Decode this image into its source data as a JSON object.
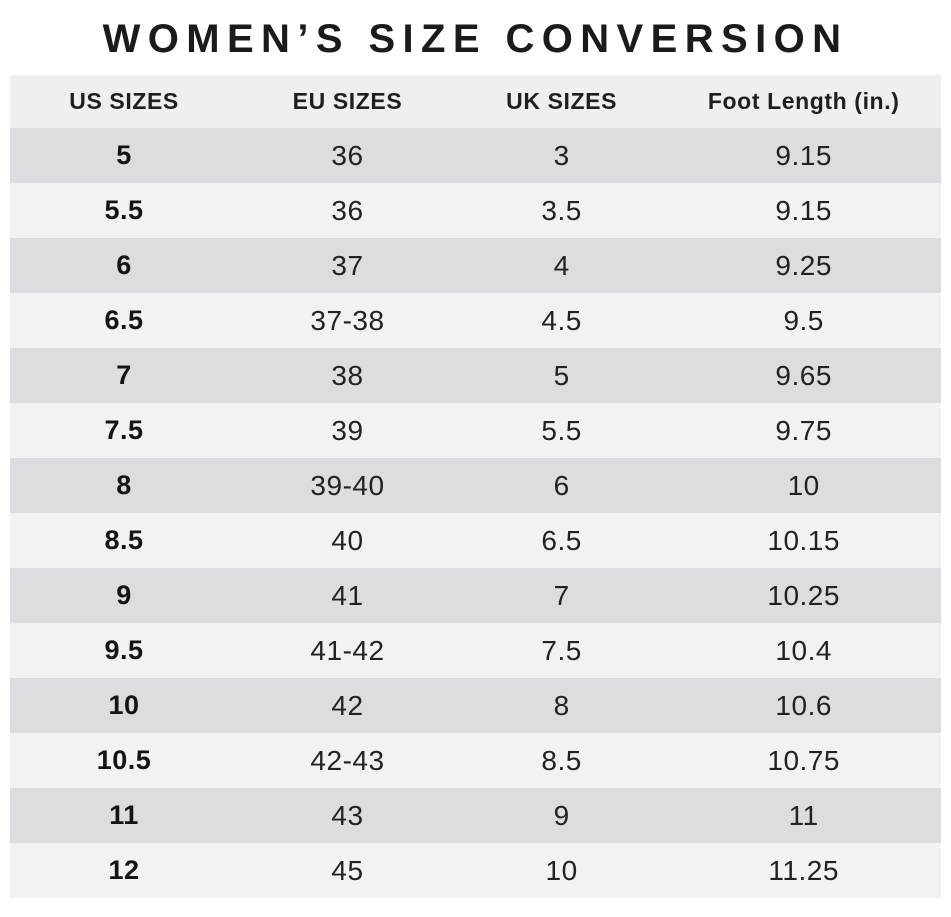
{
  "chart_data": {
    "type": "table",
    "title": "WOMEN’S SIZE CONVERSION",
    "columns": [
      "US SIZES",
      "EU SIZES",
      "UK SIZES",
      "Foot Length (in.)"
    ],
    "rows": [
      [
        "5",
        "36",
        "3",
        "9.15"
      ],
      [
        "5.5",
        "36",
        "3.5",
        "9.15"
      ],
      [
        "6",
        "37",
        "4",
        "9.25"
      ],
      [
        "6.5",
        "37-38",
        "4.5",
        "9.5"
      ],
      [
        "7",
        "38",
        "5",
        "9.65"
      ],
      [
        "7.5",
        "39",
        "5.5",
        "9.75"
      ],
      [
        "8",
        "39-40",
        "6",
        "10"
      ],
      [
        "8.5",
        "40",
        "6.5",
        "10.15"
      ],
      [
        "9",
        "41",
        "7",
        "10.25"
      ],
      [
        "9.5",
        "41-42",
        "7.5",
        "10.4"
      ],
      [
        "10",
        "42",
        "8",
        "10.6"
      ],
      [
        "10.5",
        "42-43",
        "8.5",
        "10.75"
      ],
      [
        "11",
        "43",
        "9",
        "11"
      ],
      [
        "12",
        "45",
        "10",
        "11.25"
      ]
    ],
    "layout": {
      "striped": true,
      "first_data_row_shade": "dark",
      "bold_column": "US SIZES",
      "legend": "none",
      "grid": "row-stripes-only"
    }
  },
  "colors": {
    "page_bg": "#ffffff",
    "header_bg": "#f0efee",
    "row_dark_bg": "#dcdde0",
    "row_light_bg": "#f2f2f3",
    "title_text": "#1b1b1b",
    "cell_text": "#222222"
  }
}
